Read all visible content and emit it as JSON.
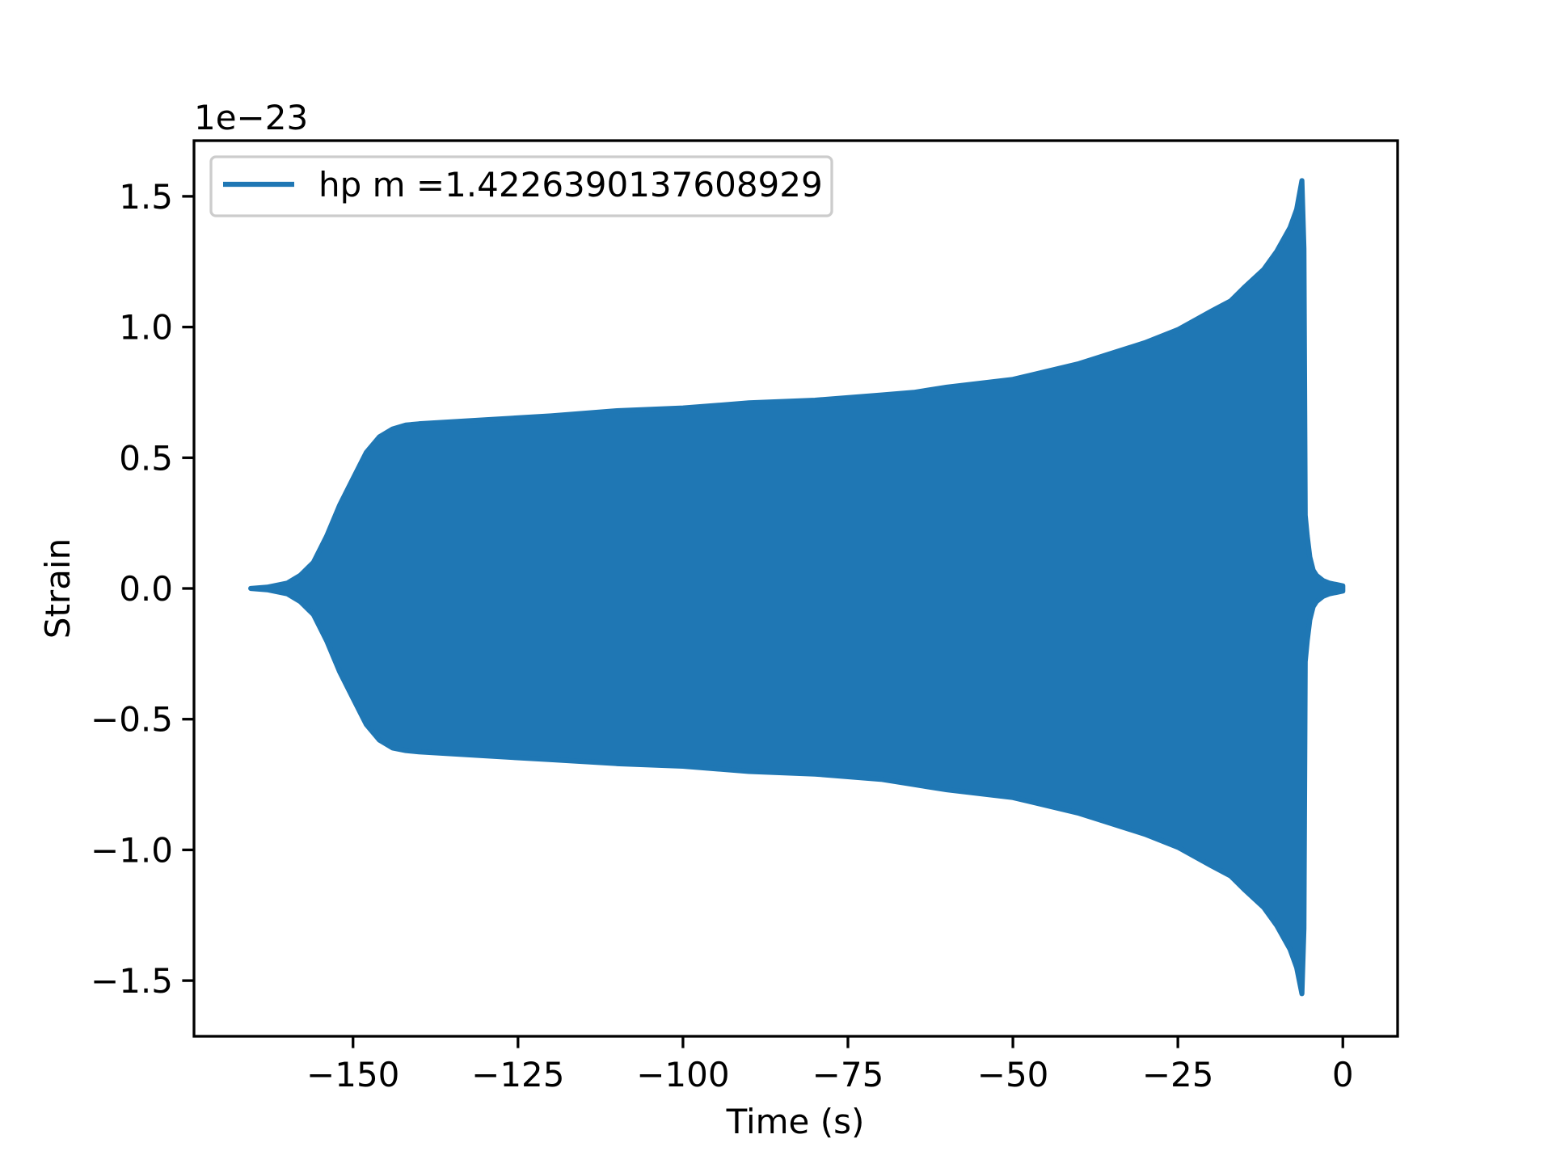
{
  "chart_data": {
    "type": "line",
    "title": "",
    "xlabel": "Time (s)",
    "ylabel": "Strain",
    "y_offset_text": "1e−23",
    "xlim": [
      -174.1,
      8.3
    ],
    "ylim": [
      -1.713,
      1.713
    ],
    "x_ticks": [
      -150,
      -125,
      -100,
      -75,
      -50,
      -25,
      0
    ],
    "x_tick_labels": [
      "−150",
      "−125",
      "−100",
      "−75",
      "−50",
      "−25",
      "0"
    ],
    "y_ticks": [
      -1.5,
      -1.0,
      -0.5,
      0.0,
      0.5,
      1.0,
      1.5
    ],
    "y_tick_labels": [
      "−1.5",
      "−1.0",
      "−0.5",
      "0.0",
      "0.5",
      "1.0",
      "1.5"
    ],
    "grid": false,
    "legend_position": "upper-left",
    "series": [
      {
        "name": "hp m =1.4226390137608929",
        "color": "#1f77b4",
        "note_envelope": "rapidly oscillating signal; upper/lower amplitude envelope in units of 1e-23",
        "x": [
          -165.5,
          -163,
          -160,
          -158,
          -156,
          -154,
          -152,
          -150,
          -148,
          -146,
          -144,
          -142,
          -140,
          -130,
          -120,
          -110,
          -100,
          -90,
          -80,
          -70,
          -65,
          -60,
          -50,
          -40,
          -30,
          -25,
          -20,
          -17,
          -15,
          -12,
          -10,
          -8,
          -7,
          -6.2,
          -5.9,
          -5.7,
          -5.4,
          -5,
          -4.5,
          -4,
          -3,
          -2,
          -1,
          0
        ],
        "upper": [
          0.0,
          0.005,
          0.02,
          0.05,
          0.1,
          0.2,
          0.32,
          0.42,
          0.52,
          0.58,
          0.61,
          0.625,
          0.63,
          0.645,
          0.66,
          0.68,
          0.69,
          0.71,
          0.72,
          0.74,
          0.75,
          0.77,
          0.8,
          0.86,
          0.94,
          0.99,
          1.06,
          1.1,
          1.15,
          1.22,
          1.29,
          1.38,
          1.45,
          1.56,
          1.3,
          0.28,
          0.2,
          0.12,
          0.07,
          0.05,
          0.03,
          0.02,
          0.015,
          0.01
        ],
        "lower": [
          0.0,
          -0.005,
          -0.02,
          -0.05,
          -0.1,
          -0.2,
          -0.32,
          -0.42,
          -0.52,
          -0.58,
          -0.61,
          -0.62,
          -0.625,
          -0.64,
          -0.655,
          -0.67,
          -0.68,
          -0.7,
          -0.71,
          -0.73,
          -0.75,
          -0.77,
          -0.8,
          -0.86,
          -0.94,
          -0.99,
          -1.06,
          -1.1,
          -1.15,
          -1.22,
          -1.29,
          -1.38,
          -1.45,
          -1.55,
          -1.3,
          -0.28,
          -0.2,
          -0.12,
          -0.07,
          -0.05,
          -0.03,
          -0.02,
          -0.015,
          -0.01
        ]
      }
    ]
  }
}
